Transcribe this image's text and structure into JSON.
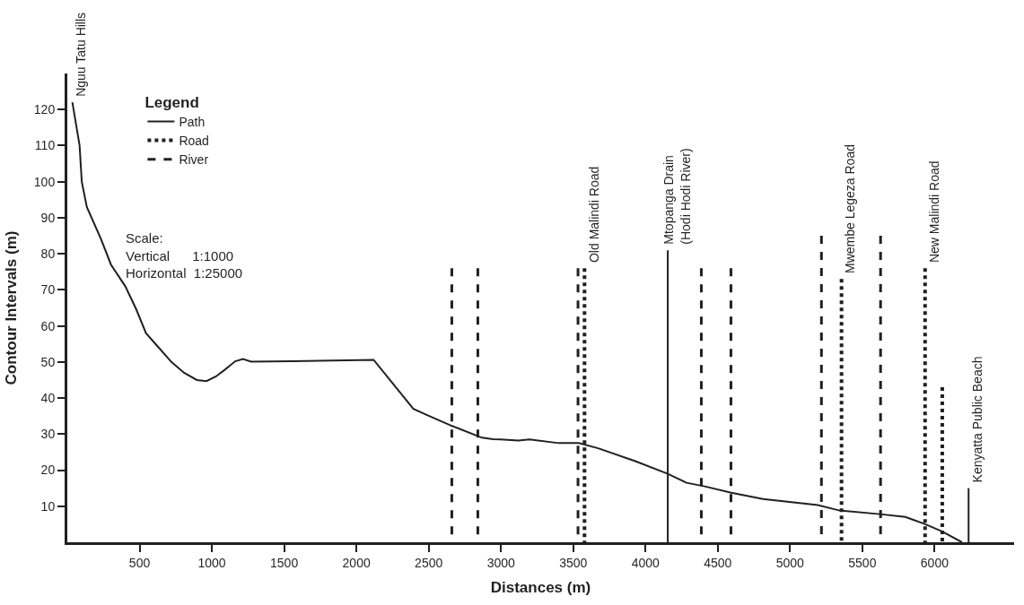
{
  "chart_data": {
    "type": "line",
    "xlabel": "Distances (m)",
    "ylabel": "Contour Intervals (m)",
    "legend_title": "Legend",
    "xlim": [
      0,
      6550
    ],
    "ylim": [
      0,
      130
    ],
    "xticks": [
      500,
      1000,
      1500,
      2000,
      2500,
      3000,
      3500,
      4000,
      4500,
      5000,
      5500,
      6000
    ],
    "yticks": [
      10,
      20,
      30,
      40,
      50,
      60,
      70,
      80,
      90,
      100,
      110,
      120
    ],
    "legend": "top left",
    "marker": "none",
    "series": [
      {
        "color": "#231f20",
        "line_style": "solid",
        "x": [
          35,
          85,
          100,
          135,
          234,
          302,
          401,
          478,
          544,
          632,
          720,
          808,
          896,
          963,
          1029,
          1095,
          1161,
          1216,
          1271,
          1557,
          2119,
          2394,
          2482,
          2659,
          2868,
          2945,
          2995,
          3121,
          3197,
          3399,
          3538,
          3677,
          3929,
          4154,
          4283,
          4409,
          4586,
          4813,
          5192,
          5343,
          5621,
          5798,
          5924,
          6051,
          6189
        ],
        "values": [
          122,
          110,
          100,
          93,
          84,
          77,
          71,
          64.5,
          58,
          54,
          50,
          47,
          45,
          44.7,
          46,
          48,
          50.2,
          50.8,
          50.1,
          50.2,
          50.6,
          37,
          35.4,
          32.3,
          29,
          28.6,
          28.5,
          28.2,
          28.5,
          27.5,
          27.5,
          26,
          22.5,
          19,
          16.5,
          15.5,
          13.8,
          12,
          10.3,
          8.8,
          7.8,
          7,
          5.2,
          3,
          0
        ]
      },
      {
        "name": "Path",
        "color": "#231f20",
        "line_style": "solid",
        "x": [
          4154,
          4154,
          null,
          6235,
          6235
        ],
        "values": [
          81,
          0,
          null,
          15,
          0
        ]
      },
      {
        "name": "Road",
        "color": "#231f20",
        "line_style": "dotted",
        "x": [
          3578,
          3578,
          null,
          5356,
          5356,
          null,
          5934,
          5934,
          null,
          6053,
          6053
        ],
        "values": [
          76,
          0,
          null,
          73,
          0,
          null,
          76,
          0,
          null,
          43,
          0
        ]
      },
      {
        "name": "River",
        "color": "#231f20",
        "line_style": "dashed",
        "x": [
          2660,
          2660,
          null,
          2840,
          2840,
          null,
          3533,
          3533,
          null,
          4386,
          4386,
          null,
          4591,
          4591,
          null,
          5217,
          5217,
          null,
          5626,
          5626
        ],
        "values": [
          76,
          0,
          null,
          76,
          0,
          null,
          76,
          0,
          null,
          76,
          0,
          null,
          76,
          0,
          null,
          85,
          0,
          null,
          85,
          0
        ]
      }
    ],
    "annotations": [
      {
        "text": "Nguu Tatu Hills",
        "x": 35,
        "y": 122
      },
      {
        "text": "Old Malindi Road",
        "x": 3578,
        "y": 76
      },
      {
        "text": "Mtopanga Drain\n(Hodi Hodi River)",
        "x": 4154,
        "y": 81
      },
      {
        "text": "Mwembe Legeza Road",
        "x": 5356,
        "y": 73
      },
      {
        "text": "New Malindi Road",
        "x": 5934,
        "y": 76
      },
      {
        "text": "Kenyatta Public Beach",
        "x": 6235,
        "y": 15
      },
      "Scale:\nVertical      1:1000\nHorizontal  1:25000"
    ]
  }
}
